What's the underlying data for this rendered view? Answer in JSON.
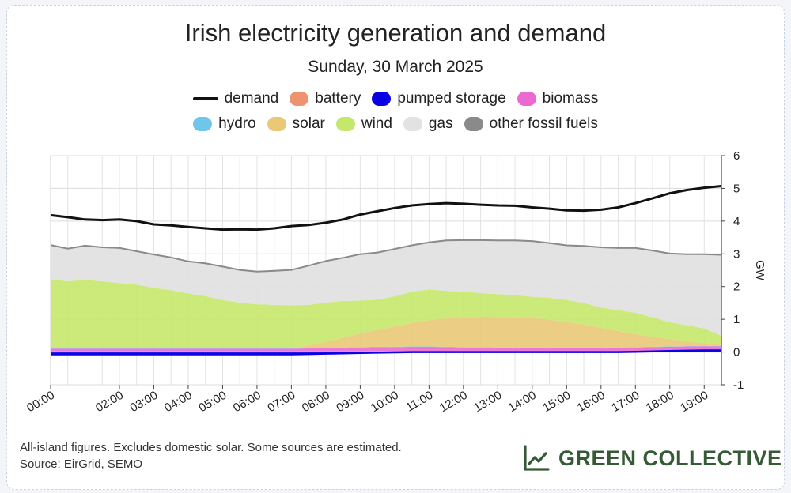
{
  "header": {
    "title": "Irish electricity generation and demand",
    "subtitle": "Sunday, 30 March 2025"
  },
  "legend": {
    "row1": [
      {
        "label": "demand",
        "color": "#111111",
        "kind": "line"
      },
      {
        "label": "battery",
        "color": "#ee9370",
        "kind": "area"
      },
      {
        "label": "pumped storage",
        "color": "#0a00e6",
        "kind": "area"
      },
      {
        "label": "biomass",
        "color": "#ea6ad0",
        "kind": "area"
      }
    ],
    "row2": [
      {
        "label": "hydro",
        "color": "#6ec6ea",
        "kind": "area"
      },
      {
        "label": "solar",
        "color": "#e9c976",
        "kind": "area"
      },
      {
        "label": "wind",
        "color": "#c5e86c",
        "kind": "area"
      },
      {
        "label": "gas",
        "color": "#e2e2e2",
        "kind": "area"
      },
      {
        "label": "other fossil fuels",
        "color": "#8a8a8a",
        "kind": "area"
      }
    ]
  },
  "chart_data": {
    "type": "area",
    "title": "Irish electricity generation and demand",
    "subtitle": "Sunday, 30 March 2025",
    "xlabel": "",
    "ylabel": "GW",
    "ylim": [
      -1,
      6
    ],
    "yticks": [
      -1,
      0,
      1,
      2,
      3,
      4,
      5,
      6
    ],
    "xlim": [
      0,
      19.5
    ],
    "xticks": [
      0,
      2,
      3,
      4,
      5,
      6,
      7,
      8,
      9,
      10,
      11,
      12,
      13,
      14,
      15,
      16,
      17,
      18,
      19
    ],
    "xtick_labels": [
      "00:00",
      "02:00",
      "03:00",
      "04:00",
      "05:00",
      "06:00",
      "07:00",
      "08:00",
      "09:00",
      "10:00",
      "11:00",
      "12:00",
      "13:00",
      "14:00",
      "15:00",
      "16:00",
      "17:00",
      "18:00",
      "19:00"
    ],
    "grid": true,
    "x": [
      0,
      0.5,
      1,
      1.5,
      2,
      2.5,
      3,
      3.5,
      4,
      4.5,
      5,
      5.5,
      6,
      6.5,
      7,
      7.5,
      8,
      8.5,
      9,
      9.5,
      10,
      10.5,
      11,
      11.5,
      12,
      12.5,
      13,
      13.5,
      14,
      14.5,
      15,
      15.5,
      16,
      16.5,
      17,
      17.5,
      18,
      18.5,
      19,
      19.5
    ],
    "series": [
      {
        "name": "pumped storage",
        "values": [
          -0.07,
          -0.07,
          -0.07,
          -0.07,
          -0.07,
          -0.07,
          -0.07,
          -0.07,
          -0.07,
          -0.07,
          -0.07,
          -0.07,
          -0.07,
          -0.07,
          -0.07,
          -0.06,
          -0.05,
          -0.04,
          -0.03,
          -0.02,
          -0.01,
          0,
          0,
          0,
          0,
          0,
          0,
          0,
          0,
          0,
          0,
          0,
          0,
          0,
          0.01,
          0.02,
          0.03,
          0.04,
          0.05,
          0.05
        ]
      },
      {
        "name": "battery",
        "values": [
          0.02,
          0.02,
          0.02,
          0.02,
          0.02,
          0.02,
          0.02,
          0.02,
          0.02,
          0.02,
          0.02,
          0.02,
          0.02,
          0.02,
          0.02,
          0.02,
          0.02,
          0.02,
          0.02,
          0.02,
          0.02,
          0.02,
          0.02,
          0.02,
          0.02,
          0.02,
          0.02,
          0.02,
          0.02,
          0.02,
          0.02,
          0.02,
          0.02,
          0.02,
          0.02,
          0.02,
          0.02,
          0.02,
          0.02,
          0.02
        ]
      },
      {
        "name": "biomass",
        "values": [
          0.08,
          0.08,
          0.08,
          0.08,
          0.08,
          0.08,
          0.08,
          0.08,
          0.08,
          0.08,
          0.08,
          0.08,
          0.08,
          0.08,
          0.08,
          0.09,
          0.1,
          0.11,
          0.12,
          0.13,
          0.13,
          0.14,
          0.14,
          0.13,
          0.12,
          0.12,
          0.11,
          0.11,
          0.11,
          0.11,
          0.11,
          0.11,
          0.11,
          0.11,
          0.11,
          0.11,
          0.11,
          0.11,
          0.11,
          0.1
        ]
      },
      {
        "name": "hydro",
        "values": [
          0.01,
          0.01,
          0.01,
          0.01,
          0.01,
          0.01,
          0.01,
          0.01,
          0.01,
          0.01,
          0.01,
          0.01,
          0.01,
          0.01,
          0.01,
          0.01,
          0.01,
          0.01,
          0.01,
          0.01,
          0.01,
          0.01,
          0.01,
          0.01,
          0.01,
          0.01,
          0.01,
          0.01,
          0.01,
          0.01,
          0.01,
          0.01,
          0.01,
          0.01,
          0.01,
          0.01,
          0.01,
          0.01,
          0.01,
          0.01
        ]
      },
      {
        "name": "solar",
        "values": [
          0,
          0,
          0,
          0,
          0,
          0,
          0,
          0,
          0,
          0,
          0,
          0,
          0,
          0,
          0,
          0.08,
          0.18,
          0.3,
          0.42,
          0.52,
          0.62,
          0.72,
          0.8,
          0.86,
          0.9,
          0.93,
          0.93,
          0.92,
          0.9,
          0.85,
          0.78,
          0.7,
          0.6,
          0.5,
          0.4,
          0.3,
          0.22,
          0.14,
          0.08,
          0.04
        ]
      },
      {
        "name": "wind",
        "values": [
          2.12,
          2.05,
          2.1,
          2.05,
          2.0,
          1.95,
          1.85,
          1.78,
          1.68,
          1.6,
          1.48,
          1.4,
          1.35,
          1.33,
          1.32,
          1.24,
          1.2,
          1.12,
          1.0,
          0.92,
          0.92,
          0.95,
          0.94,
          0.85,
          0.8,
          0.72,
          0.7,
          0.68,
          0.65,
          0.67,
          0.67,
          0.66,
          0.62,
          0.64,
          0.65,
          0.6,
          0.52,
          0.5,
          0.45,
          0.28
        ]
      },
      {
        "name": "gas",
        "values": [
          1.02,
          0.98,
          1.02,
          1.02,
          1.05,
          1.0,
          1.0,
          0.98,
          0.96,
          0.98,
          1.0,
          0.98,
          0.98,
          1.02,
          1.06,
          1.18,
          1.25,
          1.3,
          1.4,
          1.42,
          1.43,
          1.4,
          1.42,
          1.52,
          1.55,
          1.6,
          1.62,
          1.65,
          1.68,
          1.65,
          1.65,
          1.72,
          1.82,
          1.88,
          1.96,
          2.02,
          2.08,
          2.15,
          2.25,
          2.45
        ]
      },
      {
        "name": "other fossil fuels",
        "values": [
          0.02,
          0.02,
          0.02,
          0.02,
          0.02,
          0.02,
          0.02,
          0.02,
          0.02,
          0.02,
          0.02,
          0.02,
          0.02,
          0.02,
          0.02,
          0.02,
          0.02,
          0.02,
          0.02,
          0.02,
          0.02,
          0.02,
          0.02,
          0.02,
          0.02,
          0.02,
          0.02,
          0.02,
          0.02,
          0.02,
          0.02,
          0.02,
          0.02,
          0.02,
          0.02,
          0.02,
          0.02,
          0.02,
          0.02,
          0.02
        ]
      },
      {
        "name": "demand",
        "values": [
          4.18,
          4.12,
          4.05,
          4.03,
          4.05,
          4.0,
          3.9,
          3.87,
          3.82,
          3.78,
          3.74,
          3.75,
          3.74,
          3.78,
          3.85,
          3.88,
          3.95,
          4.05,
          4.2,
          4.3,
          4.4,
          4.48,
          4.52,
          4.55,
          4.53,
          4.5,
          4.48,
          4.47,
          4.42,
          4.38,
          4.33,
          4.32,
          4.35,
          4.42,
          4.55,
          4.7,
          4.85,
          4.95,
          5.02,
          5.07
        ]
      }
    ]
  },
  "footer": {
    "note": "All-island figures. Excludes domestic solar. Some sources are estimated.",
    "source": "Source: EirGrid, SEMO"
  },
  "brand": {
    "name": "GREEN COLLECTIVE",
    "icon": "line-chart-icon",
    "color": "#365a36"
  }
}
